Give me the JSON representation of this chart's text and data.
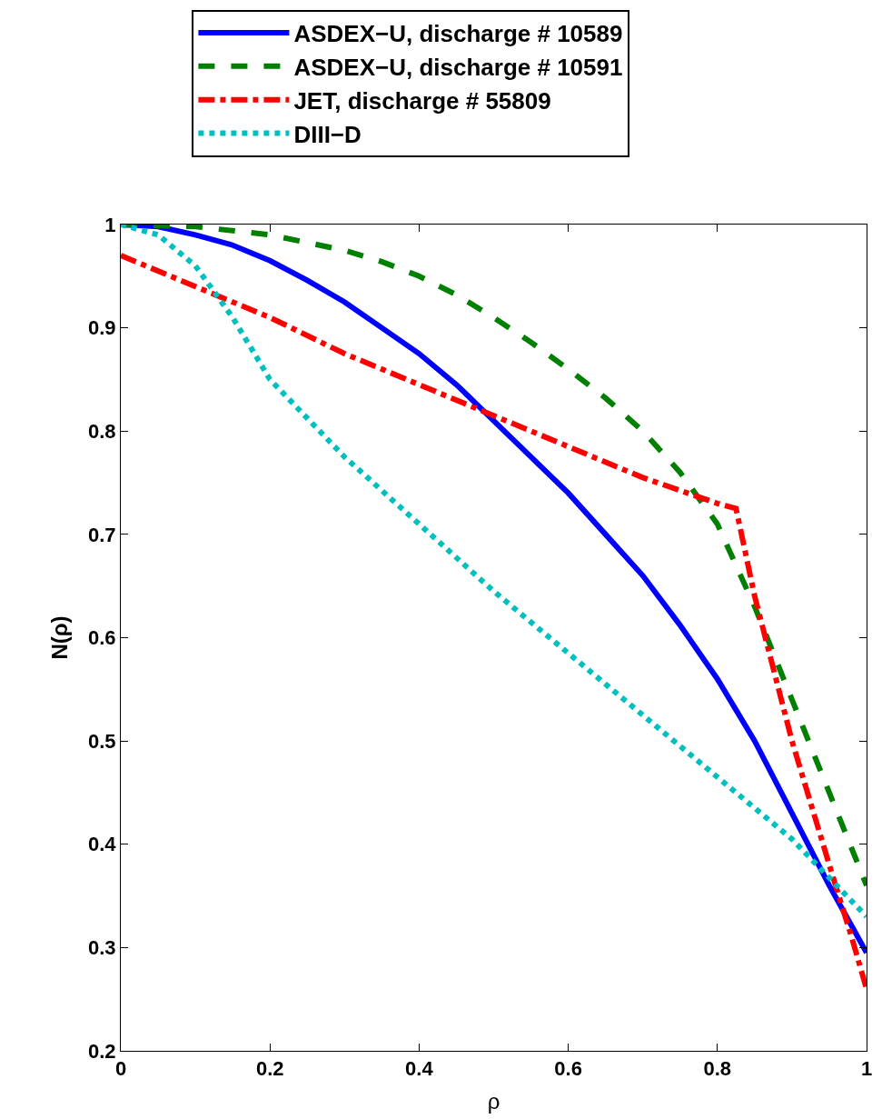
{
  "chart_data": {
    "type": "line",
    "xlabel": "ρ",
    "ylabel": "N(ρ)",
    "xlim": [
      0,
      1
    ],
    "ylim": [
      0.2,
      1
    ],
    "xticks": [
      0,
      0.2,
      0.4,
      0.6,
      0.8,
      1
    ],
    "yticks": [
      0.2,
      0.3,
      0.4,
      0.5,
      0.6,
      0.7,
      0.8,
      0.9,
      1
    ],
    "legend": "top",
    "marker": "none",
    "series": [
      {
        "name": "ASDEX−U, discharge # 10589",
        "color": "#0000ff",
        "line_style": "solid",
        "x": [
          0,
          0.05,
          0.1,
          0.15,
          0.2,
          0.25,
          0.3,
          0.35,
          0.4,
          0.45,
          0.5,
          0.55,
          0.6,
          0.65,
          0.7,
          0.75,
          0.8,
          0.85,
          0.9,
          0.95,
          1
        ],
        "values": [
          1,
          0.998,
          0.99,
          0.98,
          0.965,
          0.946,
          0.925,
          0.9,
          0.875,
          0.845,
          0.81,
          0.775,
          0.74,
          0.7,
          0.66,
          0.612,
          0.56,
          0.5,
          0.43,
          0.36,
          0.295
        ]
      },
      {
        "name": "ASDEX−U, discharge # 10591",
        "color": "#008000",
        "line_style": "dashed",
        "x": [
          0,
          0.1,
          0.2,
          0.3,
          0.35,
          0.4,
          0.45,
          0.5,
          0.55,
          0.6,
          0.65,
          0.7,
          0.75,
          0.8,
          0.85,
          0.9,
          0.95,
          1
        ],
        "values": [
          1,
          0.998,
          0.99,
          0.975,
          0.964,
          0.95,
          0.932,
          0.91,
          0.886,
          0.86,
          0.832,
          0.8,
          0.76,
          0.71,
          0.63,
          0.54,
          0.45,
          0.36
        ]
      },
      {
        "name": "JET, discharge # 55809",
        "color": "#ff0000",
        "line_style": "dashdot",
        "x": [
          0,
          0.1,
          0.2,
          0.3,
          0.4,
          0.5,
          0.6,
          0.7,
          0.8,
          0.825,
          0.85,
          0.9,
          0.95,
          0.98,
          1
        ],
        "values": [
          0.97,
          0.94,
          0.91,
          0.875,
          0.845,
          0.815,
          0.785,
          0.755,
          0.73,
          0.725,
          0.64,
          0.5,
          0.38,
          0.31,
          0.26
        ]
      },
      {
        "name": "DIII−D",
        "color": "#00bfbf",
        "line_style": "dotted",
        "x": [
          0,
          0.05,
          0.1,
          0.15,
          0.2,
          0.3,
          0.4,
          0.5,
          0.6,
          0.7,
          0.8,
          0.9,
          1
        ],
        "values": [
          1,
          0.99,
          0.96,
          0.91,
          0.85,
          0.775,
          0.71,
          0.645,
          0.585,
          0.525,
          0.465,
          0.405,
          0.33
        ]
      }
    ]
  }
}
